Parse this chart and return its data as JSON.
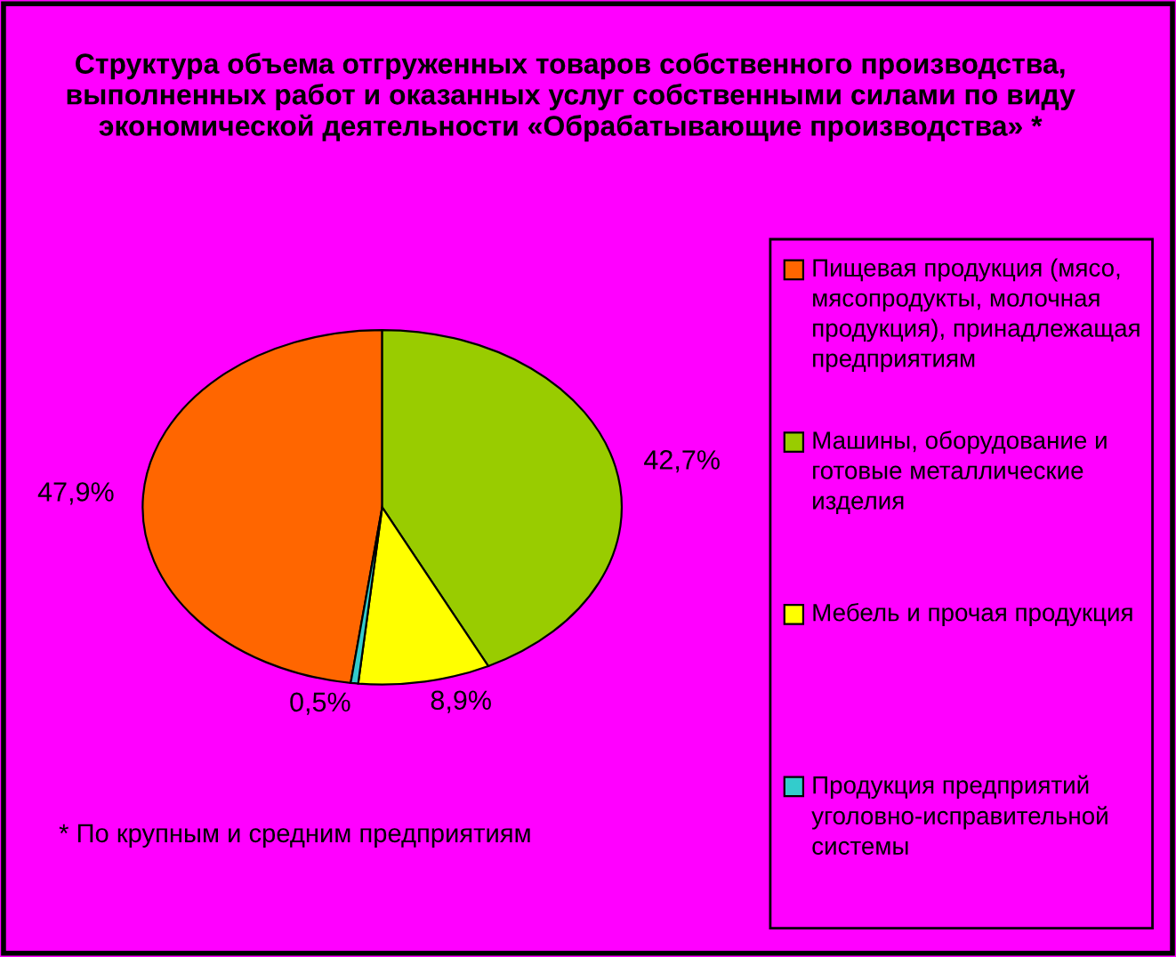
{
  "chart_data": {
    "type": "pie",
    "title": "Структура объема отгруженных товаров собственного производства, выполненных работ и оказанных услуг собственными силами по виду экономической деятельности «Обрабатывающие производства» *",
    "categories": [
      "Пищевая продукция (мясо, мясопродукты, молочная продукция), принадлежащая предприятиям",
      "Машины, оборудование и готовые металлические изделия",
      "Мебель и прочая продукция",
      "Продукция предприятий уголовно-исправительной системы"
    ],
    "values": [
      47.9,
      42.7,
      8.9,
      0.5
    ],
    "value_labels": [
      "47,9%",
      "42,7%",
      "8,9%",
      "0,5%"
    ],
    "colors": [
      "#ff6600",
      "#99cc00",
      "#ffff00",
      "#33cccc"
    ],
    "legend": "right",
    "annotations": [
      "* По крупным и средним предприятиям"
    ]
  }
}
